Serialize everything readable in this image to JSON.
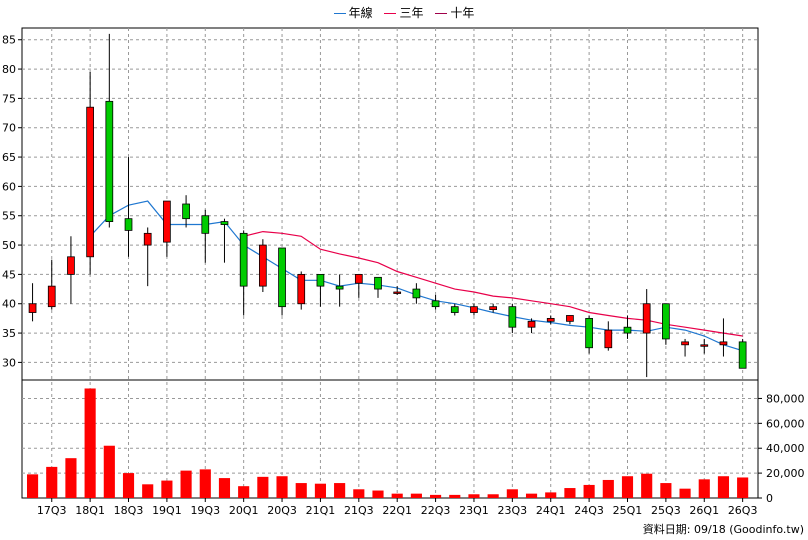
{
  "legend": [
    {
      "label": "年線",
      "color": "#1f77d0"
    },
    {
      "label": "三年",
      "color": "#e8004a"
    },
    {
      "label": "十年",
      "color": "#a0004a"
    }
  ],
  "footer": {
    "text": "資料日期: 09/18  (Goodinfo.tw)"
  },
  "colors": {
    "up": "#ff0000",
    "down": "#00cc00",
    "upDark": "#8b0000",
    "downDark": "#006400",
    "volume": "#ff0000",
    "grid": "#999999"
  },
  "chart_data": {
    "type": "bar",
    "price_axis": {
      "ylim": [
        27,
        87
      ],
      "ticks": [
        35,
        40,
        45,
        50,
        55,
        60,
        65,
        70,
        75,
        80,
        85
      ],
      "extra_ticks": [
        30
      ]
    },
    "volume_axis": {
      "ylim": [
        0,
        90000
      ],
      "ticks": [
        "0",
        "20,000",
        "40,000",
        "60,000",
        "80,000"
      ],
      "tick_values": [
        0,
        20000,
        40000,
        60000,
        80000
      ]
    },
    "x_tick_labels": [
      "17Q3",
      "18Q1",
      "18Q3",
      "19Q1",
      "19Q3",
      "20Q1",
      "20Q3",
      "21Q1",
      "21Q3",
      "22Q1",
      "22Q3",
      "23Q1",
      "23Q3",
      "24Q1",
      "24Q3",
      "25Q1",
      "25Q3",
      "26Q1",
      "26Q3"
    ],
    "candles": [
      {
        "o": 38.5,
        "c": 40,
        "h": 43.5,
        "l": 37
      },
      {
        "o": 39.5,
        "c": 43,
        "h": 47.5,
        "l": 39
      },
      {
        "o": 45,
        "c": 48,
        "h": 51.5,
        "l": 40
      },
      {
        "o": 48,
        "c": 73.5,
        "h": 79.5,
        "l": 45
      },
      {
        "o": 74.5,
        "c": 54,
        "h": 86,
        "l": 53
      },
      {
        "o": 54.5,
        "c": 52.5,
        "h": 65,
        "l": 48
      },
      {
        "o": 50,
        "c": 52,
        "h": 53,
        "l": 43
      },
      {
        "o": 50.5,
        "c": 57.5,
        "h": 57.5,
        "l": 48
      },
      {
        "o": 57,
        "c": 54.5,
        "h": 58.5,
        "l": 53
      },
      {
        "o": 55,
        "c": 52,
        "h": 56,
        "l": 47
      },
      {
        "o": 54,
        "c": 53.5,
        "h": 54.5,
        "l": 47
      },
      {
        "o": 52,
        "c": 43,
        "h": 52.5,
        "l": 38
      },
      {
        "o": 43,
        "c": 50,
        "h": 51,
        "l": 42
      },
      {
        "o": 49.5,
        "c": 39.5,
        "h": 49.5,
        "l": 38
      },
      {
        "o": 40,
        "c": 45,
        "h": 45.5,
        "l": 39
      },
      {
        "o": 45,
        "c": 43,
        "h": 45,
        "l": 39.5
      },
      {
        "o": 43,
        "c": 42.5,
        "h": 45,
        "l": 39.5
      },
      {
        "o": 43.5,
        "c": 45,
        "h": 45,
        "l": 41
      },
      {
        "o": 44.5,
        "c": 42.5,
        "h": 44.5,
        "l": 41
      },
      {
        "o": 42,
        "c": 42,
        "h": 43,
        "l": 41.5
      },
      {
        "o": 42.5,
        "c": 41,
        "h": 43.5,
        "l": 40
      },
      {
        "o": 40.5,
        "c": 39.5,
        "h": 41.5,
        "l": 39
      },
      {
        "o": 39.5,
        "c": 38.5,
        "h": 40,
        "l": 38
      },
      {
        "o": 38.5,
        "c": 39.5,
        "h": 40,
        "l": 38
      },
      {
        "o": 39,
        "c": 39.5,
        "h": 40,
        "l": 38.5
      },
      {
        "o": 39.5,
        "c": 36,
        "h": 40,
        "l": 35
      },
      {
        "o": 36,
        "c": 37,
        "h": 37.5,
        "l": 35
      },
      {
        "o": 37,
        "c": 37.5,
        "h": 38,
        "l": 36.5
      },
      {
        "o": 37,
        "c": 38,
        "h": 38,
        "l": 36.5
      },
      {
        "o": 37.5,
        "c": 32.5,
        "h": 38,
        "l": 31.5
      },
      {
        "o": 32.5,
        "c": 35.5,
        "h": 37,
        "l": 32
      },
      {
        "o": 36,
        "c": 35,
        "h": 38,
        "l": 34
      },
      {
        "o": 35,
        "c": 40,
        "h": 42.5,
        "l": 27.5
      },
      {
        "o": 40,
        "c": 34,
        "h": 40,
        "l": 33
      },
      {
        "o": 33,
        "c": 33.5,
        "h": 34,
        "l": 31
      },
      {
        "o": 33,
        "c": 33,
        "h": 34,
        "l": 31.5
      },
      {
        "o": 33,
        "c": 33.5,
        "h": 37.5,
        "l": 31
      },
      {
        "o": 33.5,
        "c": 29,
        "h": 34,
        "l": 29
      }
    ],
    "series": [
      {
        "name": "年線",
        "values": [
          null,
          null,
          null,
          51.5,
          55,
          56.8,
          57.5,
          53.5,
          53.5,
          53.5,
          54,
          50,
          48,
          46,
          44,
          44,
          43,
          43.5,
          43.2,
          42.7,
          41.5,
          40.5,
          40,
          39.3,
          38.5,
          37.8,
          37.2,
          36.8,
          36.3,
          36,
          35.5,
          35.5,
          35.3,
          36,
          35.5,
          34.5,
          33,
          32
        ]
      },
      {
        "name": "三年",
        "values": [
          null,
          null,
          null,
          null,
          null,
          null,
          null,
          null,
          null,
          null,
          null,
          51.5,
          52.3,
          52,
          51.5,
          49.3,
          48.5,
          47.8,
          47,
          45.5,
          44.5,
          43.5,
          42.5,
          42,
          41.3,
          41,
          40.5,
          40,
          39.5,
          38.5,
          38,
          37.5,
          37.2,
          36.5,
          36,
          35.5,
          35,
          34.5
        ]
      }
    ],
    "volume": [
      19000,
      25000,
      32000,
      88000,
      42000,
      20000,
      11000,
      14000,
      22000,
      23000,
      16000,
      9500,
      17000,
      17500,
      12000,
      11500,
      12000,
      7000,
      6000,
      3500,
      3500,
      2500,
      2500,
      3000,
      3000,
      7000,
      3500,
      4500,
      8000,
      10500,
      14500,
      17500,
      19500,
      12000,
      7500,
      15000,
      17500,
      16500
    ]
  }
}
